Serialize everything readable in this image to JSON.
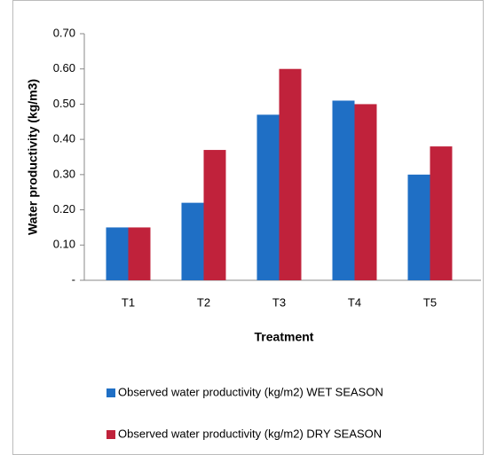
{
  "chart_data": {
    "type": "bar",
    "categories": [
      "T1",
      "T2",
      "T3",
      "T4",
      "T5"
    ],
    "series": [
      {
        "name": "Observed water productivity (kg/m2) WET SEASON",
        "color": "#1f6fc5",
        "values": [
          0.15,
          0.22,
          0.47,
          0.51,
          0.3
        ]
      },
      {
        "name": "Observed water productivity (kg/m2) DRY SEASON",
        "color": "#c0223b",
        "values": [
          0.15,
          0.37,
          0.6,
          0.5,
          0.38
        ]
      }
    ],
    "ylabel": "Water productivity (kg/m3)",
    "xlabel": "Treatment",
    "ylim": [
      0,
      0.7
    ],
    "yticks": [
      {
        "value": 0,
        "label": "-"
      },
      {
        "value": 0.1,
        "label": "0.10"
      },
      {
        "value": 0.2,
        "label": "0.20"
      },
      {
        "value": 0.3,
        "label": "0.30"
      },
      {
        "value": 0.4,
        "label": "0.40"
      },
      {
        "value": 0.5,
        "label": "0.50"
      },
      {
        "value": 0.6,
        "label": "0.60"
      },
      {
        "value": 0.7,
        "label": "0.70"
      }
    ],
    "legend": "bottom"
  }
}
